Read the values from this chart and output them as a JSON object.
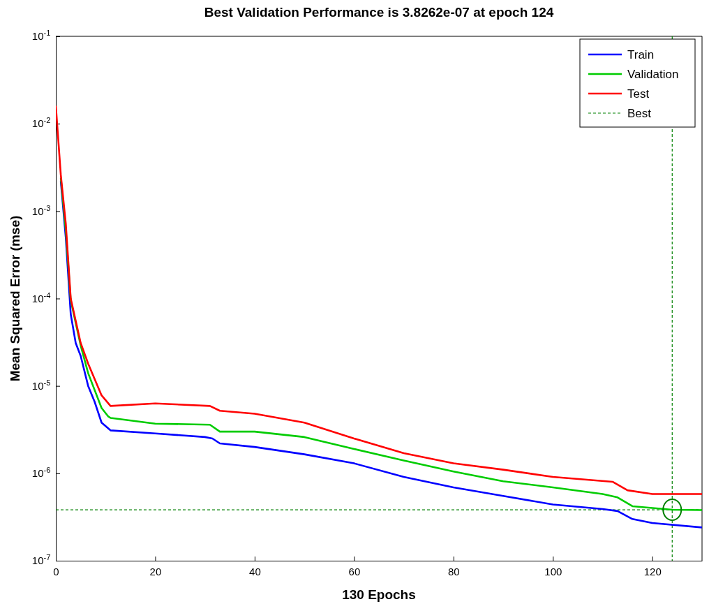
{
  "chart_data": {
    "type": "line",
    "title": "Best Validation Performance is 3.8262e-07 at epoch 124",
    "xlabel": "130 Epochs",
    "ylabel": "Mean Squared Error  (mse)",
    "log": "y",
    "xlim": [
      0,
      130
    ],
    "xticks": [
      0,
      20,
      40,
      60,
      80,
      100,
      120
    ],
    "ylim": [
      1e-07,
      0.1
    ],
    "yticks": [
      {
        "value": 0.1,
        "label": "10$^{-1}$"
      },
      {
        "value": 0.01,
        "label": "10$^{-2}$"
      },
      {
        "value": 0.001,
        "label": "10$^{-3}$"
      },
      {
        "value": 0.0001,
        "label": "10$^{-4}$"
      },
      {
        "value": 1e-05,
        "label": "10$^{-5}$"
      },
      {
        "value": 1e-06,
        "label": "10$^{-6}$"
      },
      {
        "value": 1e-07,
        "label": "10$^{-7}$"
      }
    ],
    "grid": false,
    "legend": "top right",
    "line_style": "solid",
    "series": [
      {
        "name": "Train",
        "color": "#0000ff",
        "x": [
          1,
          2,
          3,
          4,
          5,
          6.5,
          7.8,
          9.2,
          11,
          20,
          30,
          31.5,
          33,
          40,
          50,
          60,
          70,
          80,
          90,
          100,
          110,
          113,
          116,
          120,
          130
        ],
        "values": [
          0.0022,
          0.0005,
          6.6e-05,
          3.1e-05,
          2.2e-05,
          1e-05,
          6.6e-06,
          3.8e-06,
          3.1e-06,
          2.86e-06,
          2.6e-06,
          2.5e-06,
          2.2e-06,
          2e-06,
          1.65e-06,
          1.3e-06,
          9.1e-07,
          6.9e-07,
          5.5e-07,
          4.4e-07,
          3.9e-07,
          3.7e-07,
          3e-07,
          2.7e-07,
          2.4e-07
        ]
      },
      {
        "name": "Validation",
        "color": "#00cc00",
        "x": [
          1,
          2,
          3,
          5,
          6.5,
          9.2,
          10.5,
          11,
          20,
          31,
          33,
          40,
          50,
          60,
          70,
          80,
          90,
          100,
          110,
          113,
          116,
          124,
          130
        ],
        "values": [
          0.0024,
          0.0006,
          9.5e-05,
          2.9e-05,
          1.4e-05,
          5.6e-06,
          4.5e-06,
          4.3e-06,
          3.7e-06,
          3.6e-06,
          3e-06,
          3e-06,
          2.6e-06,
          1.9e-06,
          1.4e-06,
          1.05e-06,
          8.1e-07,
          6.9e-07,
          5.8e-07,
          5.3e-07,
          4.2e-07,
          3.8262e-07,
          3.8e-07
        ]
      },
      {
        "name": "Test",
        "color": "#ff0000",
        "x": [
          0,
          1,
          2,
          3,
          5,
          6.5,
          9.2,
          11,
          20,
          31,
          33,
          40,
          50,
          60,
          70,
          80,
          90,
          100,
          112,
          115,
          120,
          130
        ],
        "values": [
          0.016,
          0.0026,
          0.00072,
          0.0001,
          3.1e-05,
          1.8e-05,
          7.8e-06,
          5.9e-06,
          6.3e-06,
          5.9e-06,
          5.2e-06,
          4.8e-06,
          3.8e-06,
          2.5e-06,
          1.7e-06,
          1.3e-06,
          1.1e-06,
          9.1e-07,
          8e-07,
          6.4e-07,
          5.8e-07,
          5.8e-07
        ]
      },
      {
        "type": "scatter",
        "color": "#008000",
        "marker": "circle",
        "x": [
          124
        ],
        "values": [
          3.8262e-07
        ]
      }
    ],
    "ref_lines": [
      {
        "axis": "x",
        "value": 124,
        "label": "Best",
        "color": "#008000",
        "line_style": "dashed"
      },
      {
        "axis": "y",
        "value": 3.8262e-07,
        "color": "#008000",
        "line_style": "dashed"
      }
    ]
  }
}
